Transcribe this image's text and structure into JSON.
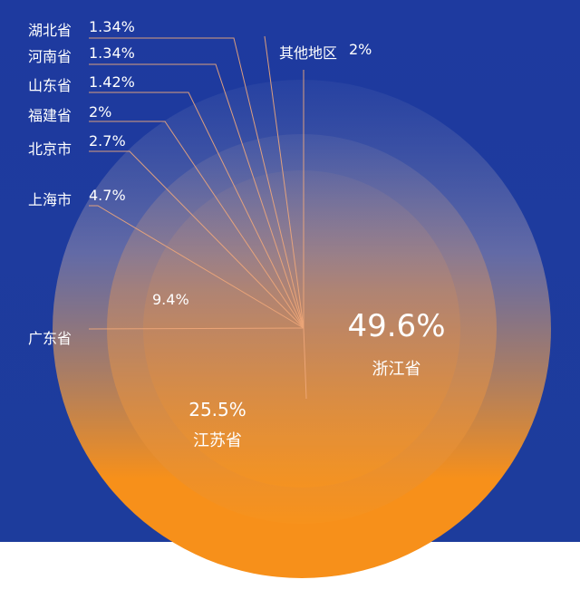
{
  "chart_data": {
    "type": "pie",
    "style": "concentric-circles",
    "colors": {
      "background": "#1e3a9f",
      "fill_top": "#6a77a8",
      "fill_bottom": "#f7901a",
      "leader_line": "#f0a87a",
      "text": "#ffffff"
    },
    "slices": [
      {
        "label": "浙江省",
        "value": 49.6,
        "value_label": "49.6%"
      },
      {
        "label": "江苏省",
        "value": 25.5,
        "value_label": "25.5%"
      },
      {
        "label": "广东省",
        "value": 9.4,
        "value_label": "9.4%"
      },
      {
        "label": "上海市",
        "value": 4.7,
        "value_label": "4.7%"
      },
      {
        "label": "北京市",
        "value": 2.7,
        "value_label": "2.7%"
      },
      {
        "label": "福建省",
        "value": 2,
        "value_label": "2%"
      },
      {
        "label": "山东省",
        "value": 1.42,
        "value_label": "1.42%"
      },
      {
        "label": "河南省",
        "value": 1.34,
        "value_label": "1.34%"
      },
      {
        "label": "湖北省",
        "value": 1.34,
        "value_label": "1.34%"
      },
      {
        "label": "其他地区",
        "value": 2,
        "value_label": "2%"
      }
    ]
  }
}
